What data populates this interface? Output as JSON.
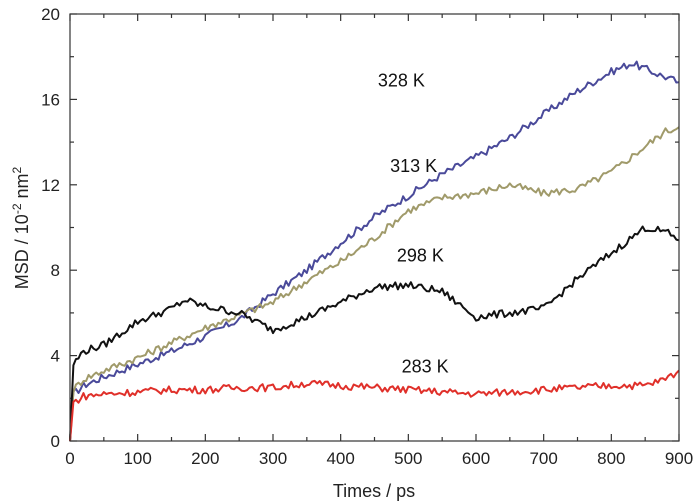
{
  "chart_data": {
    "type": "line",
    "title": "",
    "xlabel": "Times / ps",
    "ylabel_main": "MSD / 10",
    "ylabel_exp1": "-2",
    "ylabel_mid": " nm",
    "ylabel_exp2": "2",
    "xlim": [
      0,
      900
    ],
    "ylim": [
      0,
      20
    ],
    "xticks": [
      0,
      100,
      200,
      300,
      400,
      500,
      600,
      700,
      800,
      900
    ],
    "yticks": [
      0,
      4,
      8,
      12,
      16,
      20
    ],
    "x_tick_labels": [
      "0",
      "100",
      "200",
      "300",
      "400",
      "500",
      "600",
      "700",
      "800",
      "900"
    ],
    "y_tick_labels": [
      "0",
      "4",
      "8",
      "12",
      "16",
      "20"
    ],
    "grid": false,
    "series": [
      {
        "name": "328 K",
        "color": "#4a4a9a",
        "label_at": [
          455,
          16.6
        ],
        "points": [
          [
            0,
            0
          ],
          [
            5,
            2.2
          ],
          [
            20,
            2.6
          ],
          [
            50,
            3.0
          ],
          [
            100,
            3.6
          ],
          [
            150,
            4.2
          ],
          [
            200,
            4.9
          ],
          [
            250,
            5.7
          ],
          [
            300,
            6.9
          ],
          [
            350,
            8.0
          ],
          [
            400,
            9.3
          ],
          [
            450,
            10.5
          ],
          [
            500,
            11.5
          ],
          [
            550,
            12.5
          ],
          [
            600,
            13.3
          ],
          [
            650,
            14.2
          ],
          [
            700,
            15.3
          ],
          [
            750,
            16.4
          ],
          [
            800,
            17.3
          ],
          [
            830,
            17.7
          ],
          [
            860,
            17.3
          ],
          [
            900,
            16.8
          ]
        ]
      },
      {
        "name": "313 K",
        "color": "#a09a6a",
        "label_at": [
          473,
          12.6
        ],
        "points": [
          [
            0,
            0
          ],
          [
            5,
            2.4
          ],
          [
            20,
            2.9
          ],
          [
            50,
            3.3
          ],
          [
            100,
            3.9
          ],
          [
            150,
            4.6
          ],
          [
            200,
            5.3
          ],
          [
            250,
            5.9
          ],
          [
            300,
            6.5
          ],
          [
            350,
            7.5
          ],
          [
            400,
            8.4
          ],
          [
            450,
            9.5
          ],
          [
            500,
            10.8
          ],
          [
            550,
            11.4
          ],
          [
            600,
            11.6
          ],
          [
            650,
            12.0
          ],
          [
            700,
            11.6
          ],
          [
            750,
            11.8
          ],
          [
            800,
            12.6
          ],
          [
            850,
            13.8
          ],
          [
            880,
            14.5
          ],
          [
            900,
            14.7
          ]
        ]
      },
      {
        "name": "298 K",
        "color": "#111111",
        "label_at": [
          483,
          8.4
        ],
        "points": [
          [
            0,
            0
          ],
          [
            5,
            3.6
          ],
          [
            20,
            4.2
          ],
          [
            50,
            4.5
          ],
          [
            100,
            5.6
          ],
          [
            150,
            6.2
          ],
          [
            170,
            6.6
          ],
          [
            200,
            6.3
          ],
          [
            250,
            6.0
          ],
          [
            300,
            5.2
          ],
          [
            350,
            5.8
          ],
          [
            400,
            6.5
          ],
          [
            450,
            7.2
          ],
          [
            500,
            7.3
          ],
          [
            550,
            7.0
          ],
          [
            600,
            5.8
          ],
          [
            650,
            6.0
          ],
          [
            700,
            6.2
          ],
          [
            750,
            7.6
          ],
          [
            800,
            8.8
          ],
          [
            850,
            10.0
          ],
          [
            880,
            9.8
          ],
          [
            900,
            9.4
          ]
        ]
      },
      {
        "name": "283 K",
        "color": "#e0302a",
        "label_at": [
          490,
          3.2
        ],
        "points": [
          [
            0,
            0
          ],
          [
            5,
            1.8
          ],
          [
            20,
            2.1
          ],
          [
            50,
            2.2
          ],
          [
            100,
            2.3
          ],
          [
            150,
            2.4
          ],
          [
            200,
            2.4
          ],
          [
            250,
            2.5
          ],
          [
            300,
            2.5
          ],
          [
            350,
            2.7
          ],
          [
            400,
            2.6
          ],
          [
            450,
            2.5
          ],
          [
            500,
            2.4
          ],
          [
            550,
            2.3
          ],
          [
            600,
            2.2
          ],
          [
            650,
            2.3
          ],
          [
            700,
            2.4
          ],
          [
            750,
            2.5
          ],
          [
            800,
            2.6
          ],
          [
            850,
            2.6
          ],
          [
            880,
            2.9
          ],
          [
            900,
            3.3
          ]
        ]
      }
    ]
  }
}
